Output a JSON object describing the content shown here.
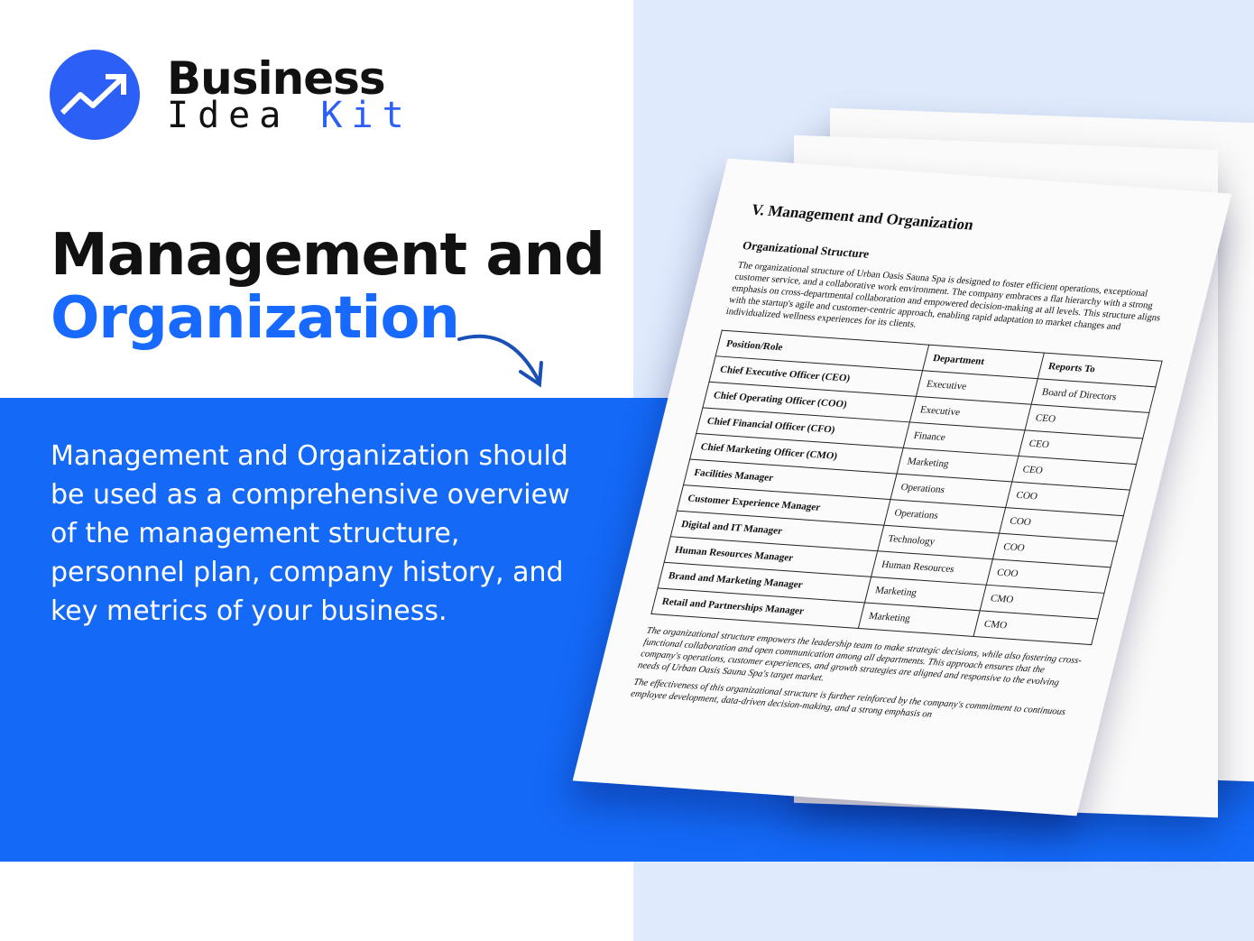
{
  "brand": {
    "line1": "Business",
    "line2a": "Idea",
    "line2b": "Kit",
    "accent": "#2c5ff6"
  },
  "heading": {
    "line1": "Management and",
    "line2": "Organization"
  },
  "description": "Management and Organization should be used as a comprehensive overview of the management structure, personnel plan, company history, and key metrics of your business.",
  "document": {
    "title": "V. Management and Organization",
    "subtitle": "Organizational Structure",
    "intro": "The organizational structure of Urban Oasis Sauna Spa is designed to foster efficient operations, exceptional customer service, and a collaborative work environment. The company embraces a flat hierarchy with a strong emphasis on cross-departmental collaboration and empowered decision-making at all levels. This structure aligns with the startup's agile and customer-centric approach, enabling rapid adaptation to market changes and individualized wellness experiences for its clients.",
    "columns": [
      "Position/Role",
      "Department",
      "Reports To"
    ],
    "rows": [
      [
        "Chief Executive Officer (CEO)",
        "Executive",
        "Board of Directors"
      ],
      [
        "Chief Operating Officer (COO)",
        "Executive",
        "CEO"
      ],
      [
        "Chief Financial Officer (CFO)",
        "Finance",
        "CEO"
      ],
      [
        "Chief Marketing Officer (CMO)",
        "Marketing",
        "CEO"
      ],
      [
        "Facilities Manager",
        "Operations",
        "COO"
      ],
      [
        "Customer Experience Manager",
        "Operations",
        "COO"
      ],
      [
        "Digital and IT Manager",
        "Technology",
        "COO"
      ],
      [
        "Human Resources Manager",
        "Human Resources",
        "COO"
      ],
      [
        "Brand and Marketing Manager",
        "Marketing",
        "CMO"
      ],
      [
        "Retail and Partnerships Manager",
        "Marketing",
        "CMO"
      ]
    ],
    "para2": "The organizational structure empowers the leadership team to make strategic decisions, while also fostering cross-functional collaboration and open communication among all departments. This approach ensures that the company's operations, customer experiences, and growth strategies are aligned and responsive to the evolving needs of Urban Oasis Sauna Spa's target market.",
    "para3": "The effectiveness of this organizational structure is further reinforced by the company's commitment to continuous employee development, data-driven decision-making, and a strong emphasis on"
  }
}
